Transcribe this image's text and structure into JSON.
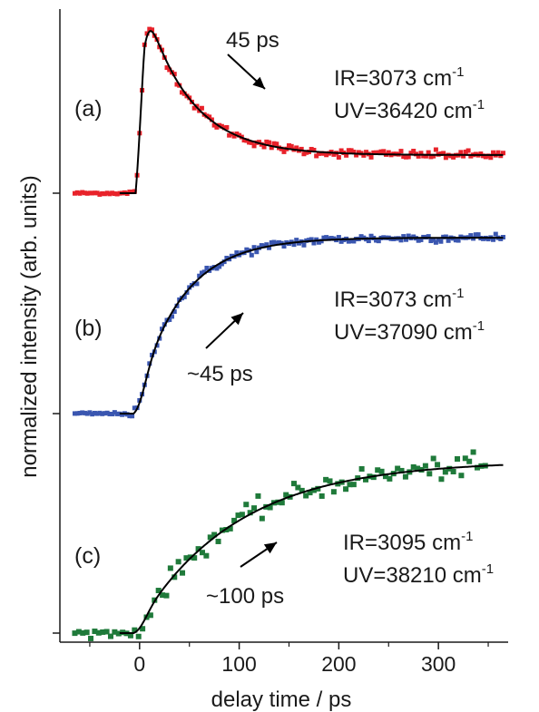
{
  "chart_data": {
    "type": "scatter",
    "xlabel": "delay time / ps",
    "ylabel": "normalized intensity (arb. units)",
    "xlim": [
      -80,
      370
    ],
    "x_ticks": [
      0,
      100,
      200,
      300
    ],
    "x_tick_labels": [
      "0",
      "100",
      "200",
      "300"
    ],
    "grid": false,
    "panels": [
      {
        "panel_label": "(a)",
        "color": "#e8222a",
        "ir_label": "IR=3073 cm",
        "uv_label": "UV=36420 cm",
        "time_annotation": "45 ps",
        "arrow_direction": "down-right",
        "model": {
          "type": "rise-decay",
          "t0": 0,
          "tau_rise": 9,
          "tau_decay": 45,
          "baseline": 0,
          "peak": 1.0,
          "plateau": 0.22
        },
        "noise": 0.012,
        "data": {
          "x_start": -65,
          "x_end": 365,
          "step": 2.5
        }
      },
      {
        "panel_label": "(b)",
        "color": "#3a56b0",
        "ir_label": "IR=3073 cm",
        "uv_label": "UV=37090 cm",
        "time_annotation": "~45 ps",
        "arrow_direction": "up-right",
        "model": {
          "type": "rise",
          "t0": 0,
          "tau": 45,
          "baseline": 0,
          "plateau": 1.0
        },
        "noise": 0.012,
        "data": {
          "x_start": -65,
          "x_end": 365,
          "step": 2.5
        }
      },
      {
        "panel_label": "(c)",
        "color": "#1f7a3a",
        "ir_label": "IR=3095 cm",
        "uv_label": "UV=38210 cm",
        "time_annotation": "~100 ps",
        "arrow_direction": "up-right",
        "model": {
          "type": "rise",
          "t0": 0,
          "tau": 100,
          "baseline": 0,
          "plateau": 1.0
        },
        "noise": 0.03,
        "data": {
          "x_start": -65,
          "x_end": 350,
          "step": 4
        }
      }
    ],
    "superscript": "-1"
  }
}
